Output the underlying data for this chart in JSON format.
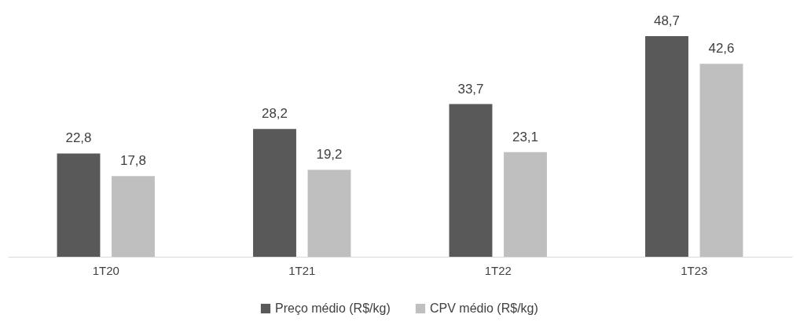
{
  "chart_data": {
    "type": "bar",
    "categories": [
      "1T20",
      "1T21",
      "1T22",
      "1T23"
    ],
    "series": [
      {
        "name": "Preço médio (R$/kg)",
        "color": "#595959",
        "values": [
          22.8,
          28.2,
          33.7,
          48.7
        ],
        "value_labels": [
          "22,8",
          "28,2",
          "33,7",
          "48,7"
        ]
      },
      {
        "name": "CPV médio (R$/kg)",
        "color": "#bfbfbf",
        "values": [
          17.8,
          19.2,
          23.1,
          42.6
        ],
        "value_labels": [
          "17,8",
          "19,2",
          "23,1",
          "42,6"
        ]
      }
    ],
    "legend": "bottom"
  }
}
